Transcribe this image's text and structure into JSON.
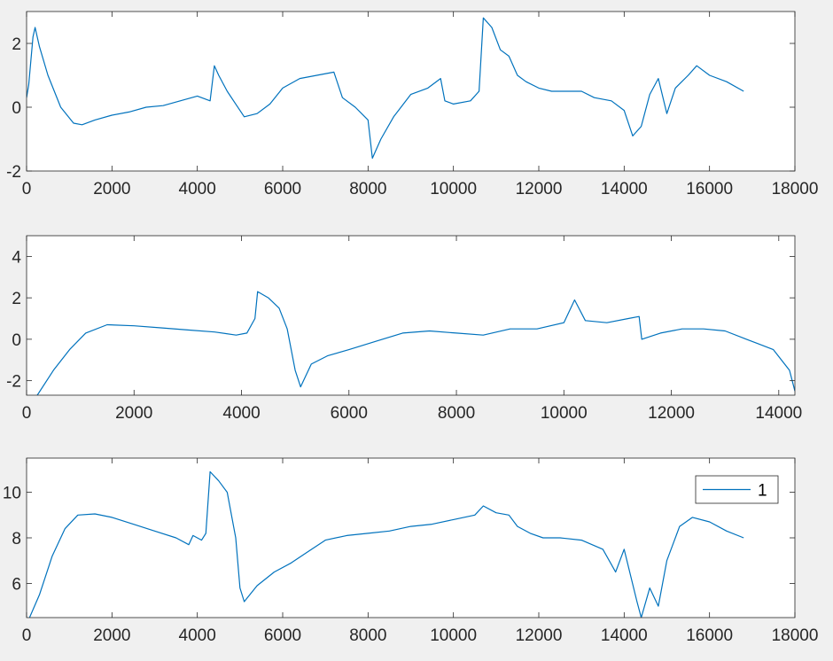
{
  "colors": {
    "background": "#f0f0f0",
    "axes_background": "#ffffff",
    "axis_color": "#262626",
    "series_color": "#0072bd"
  },
  "chart_data": [
    {
      "type": "line",
      "xlim": [
        0,
        18000
      ],
      "ylim": [
        -2,
        3
      ],
      "xticks": [
        0,
        2000,
        4000,
        6000,
        8000,
        10000,
        12000,
        14000,
        16000,
        18000
      ],
      "yticks": [
        -2,
        0,
        2
      ],
      "legend": null,
      "series": [
        {
          "values": [
            [
              0,
              0.3
            ],
            [
              50,
              0.7
            ],
            [
              150,
              2.2
            ],
            [
              200,
              2.5
            ],
            [
              300,
              1.9
            ],
            [
              500,
              1.0
            ],
            [
              800,
              0.0
            ],
            [
              1100,
              -0.5
            ],
            [
              1300,
              -0.55
            ],
            [
              1600,
              -0.4
            ],
            [
              2000,
              -0.25
            ],
            [
              2400,
              -0.15
            ],
            [
              2800,
              0.0
            ],
            [
              3200,
              0.05
            ],
            [
              3600,
              0.2
            ],
            [
              4000,
              0.35
            ],
            [
              4300,
              0.2
            ],
            [
              4400,
              1.3
            ],
            [
              4500,
              1.0
            ],
            [
              4700,
              0.5
            ],
            [
              4900,
              0.1
            ],
            [
              5100,
              -0.3
            ],
            [
              5400,
              -0.2
            ],
            [
              5700,
              0.1
            ],
            [
              6000,
              0.6
            ],
            [
              6400,
              0.9
            ],
            [
              6800,
              1.0
            ],
            [
              7200,
              1.1
            ],
            [
              7400,
              0.3
            ],
            [
              7700,
              0.0
            ],
            [
              8000,
              -0.4
            ],
            [
              8100,
              -1.6
            ],
            [
              8300,
              -1.0
            ],
            [
              8600,
              -0.3
            ],
            [
              9000,
              0.4
            ],
            [
              9400,
              0.6
            ],
            [
              9700,
              0.9
            ],
            [
              9800,
              0.2
            ],
            [
              10000,
              0.1
            ],
            [
              10400,
              0.2
            ],
            [
              10600,
              0.5
            ],
            [
              10700,
              2.8
            ],
            [
              10900,
              2.5
            ],
            [
              11100,
              1.8
            ],
            [
              11300,
              1.6
            ],
            [
              11500,
              1.0
            ],
            [
              11700,
              0.8
            ],
            [
              12000,
              0.6
            ],
            [
              12300,
              0.5
            ],
            [
              12700,
              0.5
            ],
            [
              13000,
              0.5
            ],
            [
              13300,
              0.3
            ],
            [
              13700,
              0.2
            ],
            [
              14000,
              -0.1
            ],
            [
              14200,
              -0.9
            ],
            [
              14400,
              -0.6
            ],
            [
              14600,
              0.4
            ],
            [
              14800,
              0.9
            ],
            [
              15000,
              -0.2
            ],
            [
              15200,
              0.6
            ],
            [
              15500,
              1.0
            ],
            [
              15700,
              1.3
            ],
            [
              16000,
              1.0
            ],
            [
              16400,
              0.8
            ],
            [
              16800,
              0.5
            ]
          ]
        }
      ]
    },
    {
      "type": "line",
      "xlim": [
        0,
        14300
      ],
      "ylim": [
        -2.7,
        5
      ],
      "xticks": [
        0,
        2000,
        4000,
        6000,
        8000,
        10000,
        12000,
        14000
      ],
      "yticks": [
        -2,
        0,
        2,
        4
      ],
      "legend": null,
      "series": [
        {
          "values": [
            [
              0,
              -2.9
            ],
            [
              200,
              -2.7
            ],
            [
              500,
              -1.5
            ],
            [
              800,
              -0.5
            ],
            [
              1100,
              0.3
            ],
            [
              1500,
              0.7
            ],
            [
              2000,
              0.65
            ],
            [
              2500,
              0.55
            ],
            [
              3000,
              0.45
            ],
            [
              3500,
              0.35
            ],
            [
              3900,
              0.2
            ],
            [
              4100,
              0.3
            ],
            [
              4250,
              1.0
            ],
            [
              4300,
              2.3
            ],
            [
              4500,
              2.0
            ],
            [
              4700,
              1.5
            ],
            [
              4850,
              0.5
            ],
            [
              5000,
              -1.5
            ],
            [
              5100,
              -2.3
            ],
            [
              5300,
              -1.2
            ],
            [
              5600,
              -0.8
            ],
            [
              6000,
              -0.5
            ],
            [
              6500,
              -0.1
            ],
            [
              7000,
              0.3
            ],
            [
              7500,
              0.4
            ],
            [
              8000,
              0.3
            ],
            [
              8500,
              0.2
            ],
            [
              9000,
              0.5
            ],
            [
              9500,
              0.5
            ],
            [
              10000,
              0.8
            ],
            [
              10200,
              1.9
            ],
            [
              10400,
              0.9
            ],
            [
              10800,
              0.8
            ],
            [
              11200,
              1.0
            ],
            [
              11400,
              1.1
            ],
            [
              11450,
              0.0
            ],
            [
              11800,
              0.3
            ],
            [
              12200,
              0.5
            ],
            [
              12600,
              0.5
            ],
            [
              13000,
              0.4
            ],
            [
              13400,
              0.0
            ],
            [
              13600,
              -0.2
            ],
            [
              13900,
              -0.5
            ],
            [
              14200,
              -1.5
            ],
            [
              14300,
              -2.5
            ]
          ]
        }
      ]
    },
    {
      "type": "line",
      "xlim": [
        0,
        18000
      ],
      "ylim": [
        4.5,
        11.5
      ],
      "xticks": [
        0,
        2000,
        4000,
        6000,
        8000,
        10000,
        12000,
        14000,
        16000,
        18000
      ],
      "yticks": [
        6,
        8,
        10
      ],
      "legend": {
        "entries": [
          "1"
        ],
        "placement": "top-right"
      },
      "series": [
        {
          "name": "1",
          "values": [
            [
              0,
              4.2
            ],
            [
              300,
              5.5
            ],
            [
              600,
              7.2
            ],
            [
              900,
              8.4
            ],
            [
              1200,
              9.0
            ],
            [
              1600,
              9.05
            ],
            [
              2000,
              8.9
            ],
            [
              2500,
              8.6
            ],
            [
              3000,
              8.3
            ],
            [
              3500,
              8.0
            ],
            [
              3800,
              7.7
            ],
            [
              3900,
              8.1
            ],
            [
              4100,
              7.9
            ],
            [
              4200,
              8.2
            ],
            [
              4300,
              10.9
            ],
            [
              4500,
              10.5
            ],
            [
              4700,
              10.0
            ],
            [
              4900,
              8.0
            ],
            [
              5000,
              5.8
            ],
            [
              5100,
              5.2
            ],
            [
              5400,
              5.9
            ],
            [
              5800,
              6.5
            ],
            [
              6200,
              6.9
            ],
            [
              6600,
              7.4
            ],
            [
              7000,
              7.9
            ],
            [
              7500,
              8.1
            ],
            [
              8000,
              8.2
            ],
            [
              8500,
              8.3
            ],
            [
              9000,
              8.5
            ],
            [
              9500,
              8.6
            ],
            [
              10000,
              8.8
            ],
            [
              10500,
              9.0
            ],
            [
              10700,
              9.4
            ],
            [
              11000,
              9.1
            ],
            [
              11300,
              9.0
            ],
            [
              11500,
              8.5
            ],
            [
              11800,
              8.2
            ],
            [
              12100,
              8.0
            ],
            [
              12500,
              8.0
            ],
            [
              13000,
              7.9
            ],
            [
              13500,
              7.5
            ],
            [
              13800,
              6.5
            ],
            [
              14000,
              7.5
            ],
            [
              14300,
              5.2
            ],
            [
              14400,
              4.5
            ],
            [
              14600,
              5.8
            ],
            [
              14800,
              5.0
            ],
            [
              15000,
              7.0
            ],
            [
              15300,
              8.5
            ],
            [
              15600,
              8.9
            ],
            [
              16000,
              8.7
            ],
            [
              16400,
              8.3
            ],
            [
              16800,
              8.0
            ]
          ]
        }
      ]
    }
  ]
}
